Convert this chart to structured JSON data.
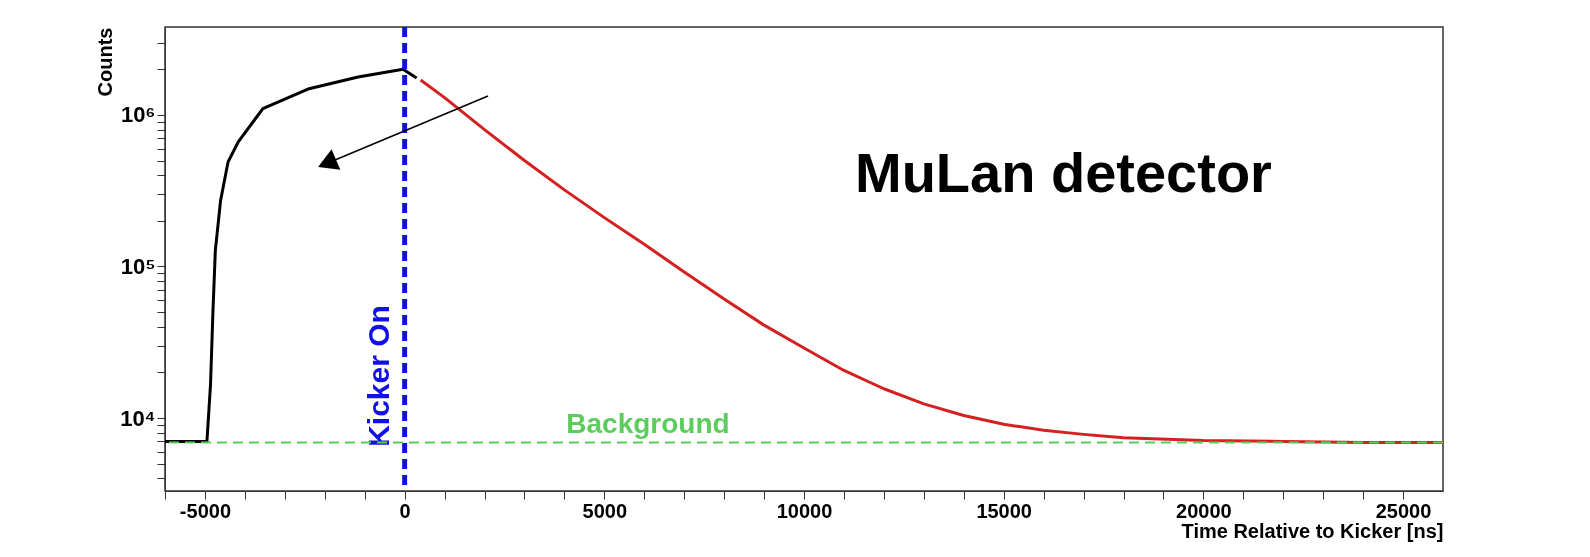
{
  "chart_data": {
    "type": "line",
    "xlabel": "Time Relative to Kicker [ns]",
    "ylabel": "Counts",
    "annotations": [
      "MuLan detector"
    ],
    "xlim": [
      -6000,
      26000
    ],
    "ylim": [
      3300,
      3800000
    ],
    "log": "y",
    "grid": false,
    "legend": false,
    "xticks": [
      {
        "value": -6000,
        "label": null
      },
      -5000,
      {
        "value": -4000,
        "label": null
      },
      {
        "value": -3000,
        "label": null
      },
      {
        "value": -2000,
        "label": null
      },
      {
        "value": -1000,
        "label": null
      },
      0,
      {
        "value": 1000,
        "label": null
      },
      {
        "value": 2000,
        "label": null
      },
      {
        "value": 3000,
        "label": null
      },
      {
        "value": 4000,
        "label": null
      },
      5000,
      {
        "value": 6000,
        "label": null
      },
      {
        "value": 7000,
        "label": null
      },
      {
        "value": 8000,
        "label": null
      },
      {
        "value": 9000,
        "label": null
      },
      10000,
      {
        "value": 11000,
        "label": null
      },
      {
        "value": 12000,
        "label": null
      },
      {
        "value": 13000,
        "label": null
      },
      {
        "value": 14000,
        "label": null
      },
      15000,
      {
        "value": 16000,
        "label": null
      },
      {
        "value": 17000,
        "label": null
      },
      {
        "value": 18000,
        "label": null
      },
      {
        "value": 19000,
        "label": null
      },
      20000,
      {
        "value": 21000,
        "label": null
      },
      {
        "value": 22000,
        "label": null
      },
      {
        "value": 23000,
        "label": null
      },
      {
        "value": 24000,
        "label": null
      },
      25000
    ],
    "yticks": [
      {
        "value": 4000,
        "label": null
      },
      {
        "value": 5000,
        "label": null
      },
      {
        "value": 6000,
        "label": null
      },
      {
        "value": 7000,
        "label": null
      },
      {
        "value": 8000,
        "label": null
      },
      {
        "value": 9000,
        "label": null
      },
      {
        "value": 10000,
        "label": "10⁴"
      },
      {
        "value": 20000,
        "label": null
      },
      {
        "value": 30000,
        "label": null
      },
      {
        "value": 40000,
        "label": null
      },
      {
        "value": 50000,
        "label": null
      },
      {
        "value": 60000,
        "label": null
      },
      {
        "value": 70000,
        "label": null
      },
      {
        "value": 80000,
        "label": null
      },
      {
        "value": 90000,
        "label": null
      },
      {
        "value": 100000,
        "label": "10⁵"
      },
      {
        "value": 200000,
        "label": null
      },
      {
        "value": 300000,
        "label": null
      },
      {
        "value": 400000,
        "label": null
      },
      {
        "value": 500000,
        "label": null
      },
      {
        "value": 600000,
        "label": null
      },
      {
        "value": 700000,
        "label": null
      },
      {
        "value": 800000,
        "label": null
      },
      {
        "value": 900000,
        "label": null
      },
      {
        "value": 1000000,
        "label": "10⁶"
      },
      {
        "value": 2000000,
        "label": null
      },
      {
        "value": 3000000,
        "label": null
      }
    ],
    "ref_lines": [
      {
        "axis": "x",
        "value": 0,
        "label": "Kicker On",
        "color": "#1010e8",
        "line_style": "dashed"
      },
      {
        "axis": "y",
        "value": 6900,
        "label": "Background",
        "color": "#5ccc5c",
        "line_style": "dashed"
      }
    ],
    "series": [
      {
        "color": "#000000",
        "x": [
          -6000,
          -4950,
          -4860,
          -4800,
          -4740,
          -4610,
          -4420,
          -4170,
          -3550,
          -2420,
          -1165,
          -40,
          300
        ],
        "values": [
          7000,
          7000,
          16700,
          50000,
          127000,
          270000,
          490000,
          660000,
          1100000,
          1480000,
          1780000,
          2000000,
          1750000
        ]
      },
      {
        "color": "#d42020",
        "x": [
          400,
          1000,
          2000,
          3000,
          4000,
          5000,
          6000,
          7000,
          8000,
          9000,
          10000,
          11000,
          12000,
          13000,
          14000,
          15000,
          16000,
          17000,
          18000,
          20000,
          22000,
          24000,
          26000
        ],
        "values": [
          1700000,
          1300000,
          800000,
          500000,
          320000,
          210000,
          140000,
          92000,
          61000,
          41000,
          29000,
          20600,
          15600,
          12400,
          10400,
          9100,
          8300,
          7800,
          7400,
          7100,
          7000,
          6900,
          6900
        ]
      }
    ]
  }
}
